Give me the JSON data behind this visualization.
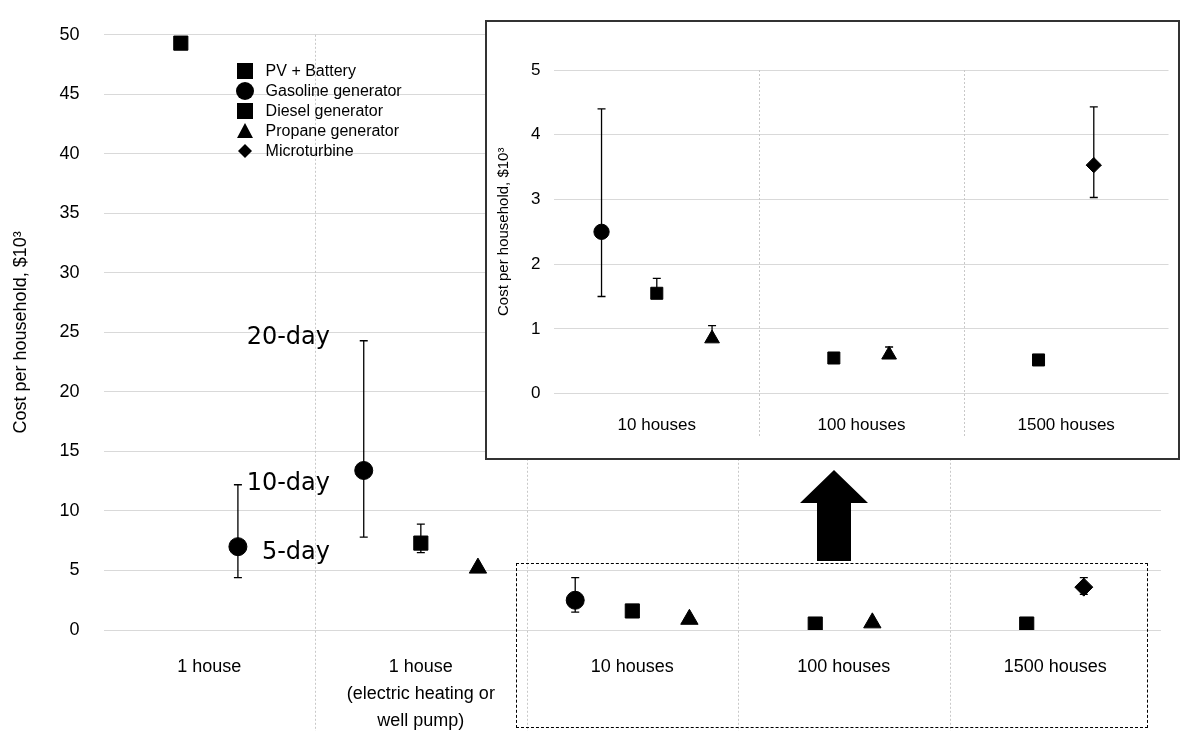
{
  "chart_data": [
    {
      "type": "scatter",
      "ylabel": "Cost per household, $10³",
      "categories": [
        "1 house",
        "1 house\n(electric heating or\nwell pump)",
        "10 houses",
        "100 houses",
        "1500 houses"
      ],
      "ylim": [
        0,
        50
      ],
      "yticks": [
        0,
        5,
        10,
        15,
        20,
        25,
        30,
        35,
        40,
        45,
        50
      ],
      "grid": true,
      "legend": "top left",
      "series": [
        {
          "name": "PV + Battery",
          "color": "#000000",
          "marker": "square",
          "values": [
            49.3,
            null,
            null,
            null,
            null
          ]
        },
        {
          "name": "Gasoline generator",
          "color": "#000000",
          "marker": "circle",
          "values": [
            7.0,
            13.4,
            2.5,
            null,
            null
          ],
          "errors": [
            [
              4.4,
              12.2
            ],
            [
              7.8,
              24.3
            ],
            [
              1.5,
              4.4
            ],
            null,
            null
          ]
        },
        {
          "name": "Diesel generator",
          "color": "#000000",
          "marker": "square",
          "values": [
            null,
            7.3,
            1.6,
            0.5,
            0.5
          ],
          "errors": [
            null,
            [
              6.5,
              8.9
            ],
            null,
            null,
            null
          ]
        },
        {
          "name": "Propane generator",
          "color": "#000000",
          "marker": "triangle",
          "values": [
            null,
            5.2,
            0.9,
            0.6,
            null
          ],
          "errors": [
            null,
            null,
            null,
            null,
            null
          ]
        },
        {
          "name": "Microturbine",
          "color": "#000000",
          "marker": "diamond",
          "values": [
            null,
            null,
            null,
            null,
            3.6
          ],
          "errors": [
            null,
            null,
            null,
            null,
            [
              3.0,
              4.4
            ]
          ]
        }
      ],
      "annotations": [
        "20-day",
        "10-day",
        "5-day"
      ]
    },
    {
      "type": "scatter",
      "ylabel": "Cost per household, $10³",
      "categories": [
        "10 houses",
        "100 houses",
        "1500 houses"
      ],
      "ylim": [
        0,
        5
      ],
      "yticks": [
        0,
        1,
        2,
        3,
        4,
        5
      ],
      "grid": true,
      "series": [
        {
          "color": "#000000",
          "marker": "circle",
          "values": [
            2.5,
            null,
            null
          ],
          "errors": [
            [
              1.5,
              4.4
            ],
            null,
            null
          ]
        },
        {
          "color": "#000000",
          "marker": "square",
          "values": [
            1.55,
            0.55,
            0.52
          ],
          "errors": [
            [
              1.55,
              1.78
            ],
            null,
            null
          ]
        },
        {
          "color": "#000000",
          "marker": "triangle",
          "values": [
            0.85,
            0.6,
            null
          ],
          "errors": [
            [
              0.85,
              1.05
            ],
            [
              0.6,
              0.72
            ],
            null
          ]
        },
        {
          "color": "#000000",
          "marker": "diamond",
          "values": [
            null,
            null,
            3.53
          ],
          "errors": [
            null,
            null,
            [
              3.03,
              4.43
            ]
          ]
        }
      ]
    }
  ]
}
